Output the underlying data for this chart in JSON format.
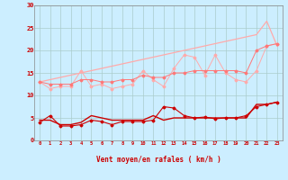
{
  "x": [
    0,
    1,
    2,
    3,
    4,
    5,
    6,
    7,
    8,
    9,
    10,
    11,
    12,
    13,
    14,
    15,
    16,
    17,
    18,
    19,
    20,
    21,
    22,
    23
  ],
  "line_gust_envelope": [
    13.0,
    13.5,
    14.0,
    14.5,
    15.0,
    15.5,
    16.0,
    16.5,
    17.0,
    17.5,
    18.0,
    18.5,
    19.0,
    19.5,
    20.0,
    20.5,
    21.0,
    21.5,
    22.0,
    22.5,
    23.0,
    23.5,
    26.5,
    21.0
  ],
  "line_gust_zigzag": [
    13.0,
    11.5,
    12.0,
    12.0,
    15.5,
    12.0,
    12.5,
    11.5,
    12.0,
    12.5,
    15.5,
    13.5,
    12.0,
    16.0,
    19.0,
    18.5,
    14.5,
    19.0,
    15.0,
    13.5,
    13.0,
    15.5,
    21.0,
    21.5
  ],
  "line_gust_smooth": [
    13.0,
    12.5,
    12.5,
    12.5,
    13.5,
    13.5,
    13.0,
    13.0,
    13.5,
    13.5,
    14.5,
    14.0,
    14.0,
    15.0,
    15.0,
    15.5,
    15.5,
    15.5,
    15.5,
    15.5,
    15.0,
    20.0,
    21.0,
    21.5
  ],
  "line_wind_zigzag": [
    4.0,
    5.5,
    3.2,
    3.2,
    3.5,
    4.5,
    4.2,
    3.5,
    4.2,
    4.2,
    4.2,
    4.5,
    7.5,
    7.2,
    5.5,
    5.0,
    5.2,
    4.8,
    5.0,
    5.0,
    5.5,
    7.5,
    8.0,
    8.5
  ],
  "line_wind_smooth": [
    4.5,
    4.5,
    3.5,
    3.5,
    4.0,
    5.5,
    5.0,
    4.5,
    4.5,
    4.5,
    4.5,
    5.5,
    4.5,
    5.0,
    5.0,
    5.0,
    5.0,
    5.0,
    5.0,
    5.0,
    5.0,
    8.0,
    8.0,
    8.5
  ],
  "background_color": "#cceeff",
  "grid_color": "#aacccc",
  "color_dark_red": "#cc0000",
  "color_light_red": "#ffaaaa",
  "color_medium_red": "#ff7777",
  "yticks": [
    0,
    5,
    10,
    15,
    20,
    25,
    30
  ],
  "xlabel": "Vent moyen/en rafales ( km/h )",
  "xlim": [
    -0.5,
    23.5
  ],
  "ylim": [
    0,
    30
  ],
  "arrow_chars": [
    "⤵",
    "⤵",
    "⤵",
    "⤵",
    "⤵",
    "↑",
    "⤵",
    "↑",
    "↑",
    "⤵",
    "↑",
    "⤵",
    "↑",
    "⤵",
    "⤵",
    "↑",
    "⤵",
    "⤵",
    "⤵",
    "⤵",
    "⤵",
    "⤵",
    "⤵",
    "⤵"
  ]
}
